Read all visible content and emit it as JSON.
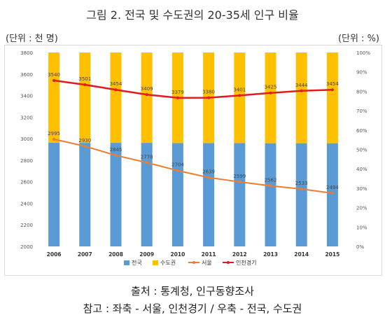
{
  "title": "그림 2. 전국 및 수도권의 20-35세 인구 비율",
  "unit_left": "(단위 : 천 명)",
  "unit_right": "(단위 : %)",
  "source": "출처 : 통계청, 인구동향조사",
  "note": "참고 : 좌축 - 서울, 인천경기 / 우축 - 전국, 수도권",
  "colors": {
    "national": "#5b9bd5",
    "capital": "#ffc000",
    "seoul": "#ed7d31",
    "incheon_gyeonggi": "#e41a1c"
  },
  "chart_data": {
    "type": "bar",
    "categories": [
      "2006",
      "2007",
      "2008",
      "2009",
      "2010",
      "2011",
      "2012",
      "2013",
      "2014",
      "2015"
    ],
    "left_axis": {
      "ylim": [
        2000,
        3800
      ],
      "ticks": [
        "2000",
        "2200",
        "2400",
        "2600",
        "2800",
        "3000",
        "3200",
        "3400",
        "3600",
        "3800"
      ]
    },
    "right_axis": {
      "ylim": [
        0,
        100
      ],
      "ticks": [
        "0%",
        "10%",
        "20%",
        "30%",
        "40%",
        "50%",
        "60%",
        "70%",
        "80%",
        "90%",
        "100%"
      ]
    },
    "series": [
      {
        "name": "전국",
        "type": "stacked-bar",
        "axis": "right",
        "values": [
          53.5,
          53.4,
          53.4,
          53.4,
          53.3,
          53.3,
          53.3,
          53.2,
          53.2,
          53.2
        ]
      },
      {
        "name": "수도권",
        "type": "stacked-bar",
        "axis": "right",
        "values": [
          46.5,
          46.6,
          46.6,
          46.6,
          46.7,
          46.7,
          46.7,
          46.8,
          46.8,
          46.8
        ]
      },
      {
        "name": "서울",
        "type": "line",
        "axis": "left",
        "values": [
          2995,
          2930,
          2845,
          2778,
          2704,
          2639,
          2599,
          2562,
          2533,
          2494
        ],
        "labels": [
          "2995",
          "2930",
          "2845",
          "2778",
          "2704",
          "2639",
          "2599",
          "2562",
          "2533",
          "2494"
        ]
      },
      {
        "name": "인천경기",
        "type": "line",
        "axis": "left",
        "values": [
          3540,
          3501,
          3454,
          3409,
          3379,
          3380,
          3401,
          3425,
          3444,
          3454
        ],
        "labels": [
          "3540",
          "3501",
          "3454",
          "3409",
          "3379",
          "3380",
          "3401",
          "3425",
          "3444",
          "3454"
        ]
      }
    ],
    "legend_placement": "bottom",
    "grid": false
  }
}
